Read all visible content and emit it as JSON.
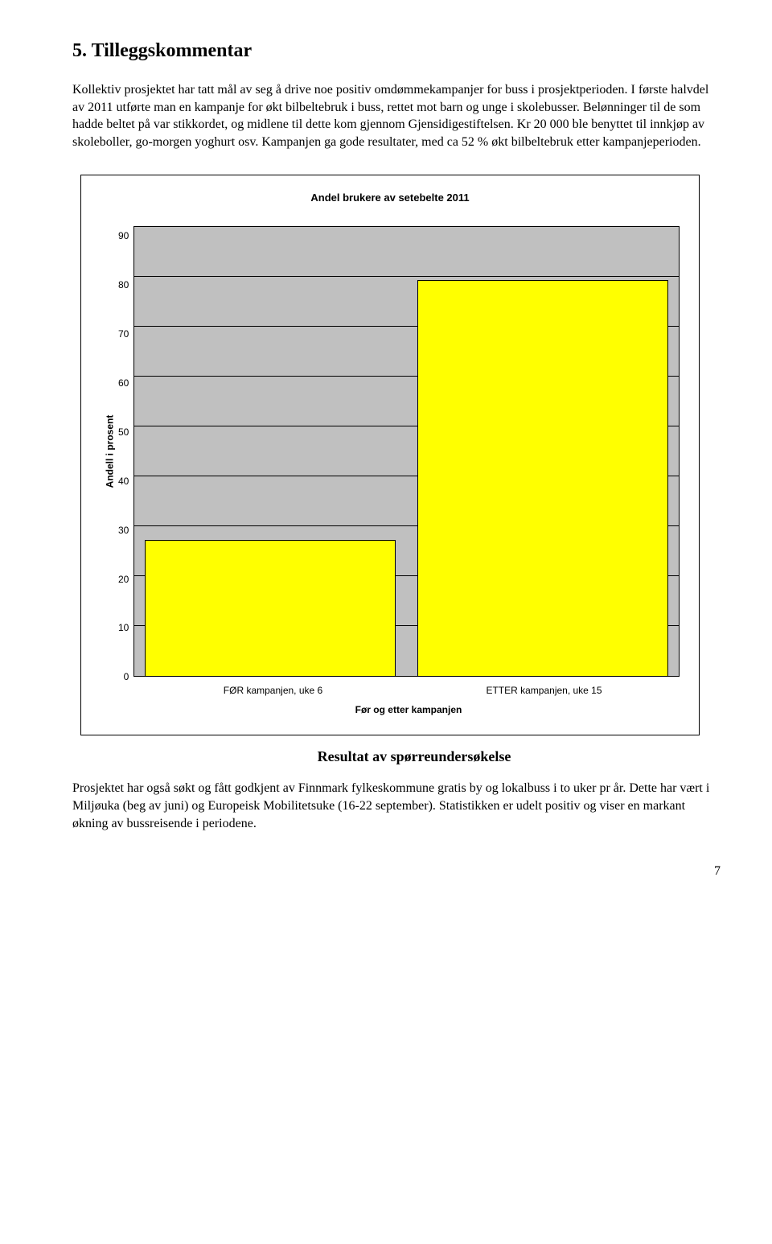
{
  "heading": "5. Tilleggskommentar",
  "para1": "Kollektiv prosjektet har tatt mål av seg å drive noe positiv omdømmekampanjer for buss i prosjektperioden. I første halvdel av 2011 utførte man en kampanje for økt bilbeltebruk i buss, rettet mot barn og unge i skolebusser. Belønninger til de som hadde beltet på var stikkordet, og midlene til dette kom gjennom Gjensidigestiftelsen. Kr 20 000 ble benyttet til innkjøp av skoleboller, go-morgen yoghurt osv. Kampanjen ga gode resultater, med ca 52 % økt bilbeltebruk etter kampanjeperioden.",
  "chart": {
    "type": "bar",
    "title": "Andel brukere av setebelte 2011",
    "ylabel": "Andell i prosent",
    "xlabel": "Før og etter kampanjen",
    "categories": [
      "FØR kampanjen, uke 6",
      "ETTER kampanjen, uke 15"
    ],
    "values": [
      27,
      79
    ],
    "ylim": [
      0,
      90
    ],
    "yticks": [
      0,
      10,
      20,
      30,
      40,
      50,
      60,
      70,
      80,
      90
    ],
    "bar_color": "#ffff00",
    "bar_border": "#000000",
    "plot_bg": "#c0c0c0",
    "grid_color": "#000000",
    "title_fontsize": 13,
    "label_fontsize": 12,
    "tick_fontsize": 12
  },
  "result_caption": "Resultat av spørreundersøkelse",
  "para2": "Prosjektet har også søkt og fått godkjent av Finnmark fylkeskommune gratis by og lokalbuss i to uker pr år. Dette har vært i Miljøuka (beg av juni) og Europeisk Mobilitetsuke (16-22 september). Statistikken er udelt positiv og viser en markant økning av bussreisende i periodene.",
  "page_number": "7"
}
